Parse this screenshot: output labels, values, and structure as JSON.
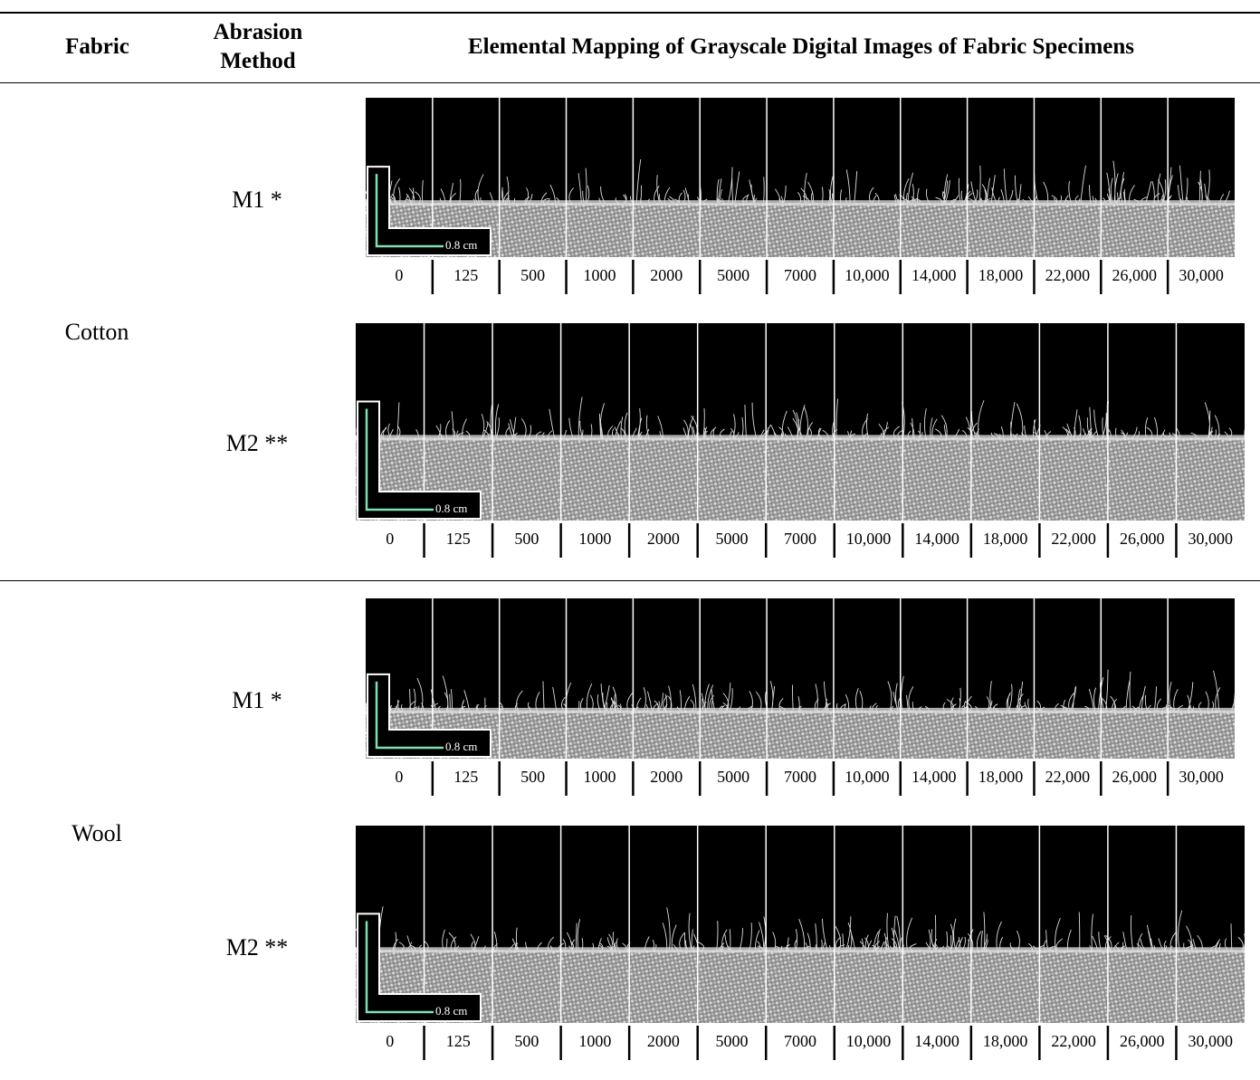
{
  "table": {
    "headers": [
      "Fabric",
      "Abrasion Method",
      "Elemental Mapping of Grayscale Digital Images of Fabric Specimens"
    ],
    "rows": [
      {
        "fabric": "Cotton",
        "methods": [
          {
            "method": "M1 *",
            "scale": "0.8 cm",
            "cycles": [
              "0",
              "125",
              "500",
              "1000",
              "2000",
              "5000",
              "7000",
              "10,000",
              "14,000",
              "18,000",
              "22,000",
              "26,000",
              "30,000"
            ]
          },
          {
            "method": "M2 **",
            "scale": "0.8 cm",
            "cycles": [
              "0",
              "125",
              "500",
              "1000",
              "2000",
              "5000",
              "7000",
              "10,000",
              "14,000",
              "18,000",
              "22,000",
              "26,000",
              "30,000"
            ]
          }
        ]
      },
      {
        "fabric": "Wool",
        "methods": [
          {
            "method": "M1 *",
            "scale": "0.8 cm",
            "cycles": [
              "0",
              "125",
              "500",
              "1000",
              "2000",
              "5000",
              "7000",
              "10,000",
              "14,000",
              "18,000",
              "22,000",
              "26,000",
              "30,000"
            ]
          },
          {
            "method": "M2 **",
            "scale": "0.8 cm",
            "cycles": [
              "0",
              "125",
              "500",
              "1000",
              "2000",
              "5000",
              "7000",
              "10,000",
              "14,000",
              "18,000",
              "22,000",
              "26,000",
              "30,000"
            ]
          }
        ]
      }
    ]
  }
}
